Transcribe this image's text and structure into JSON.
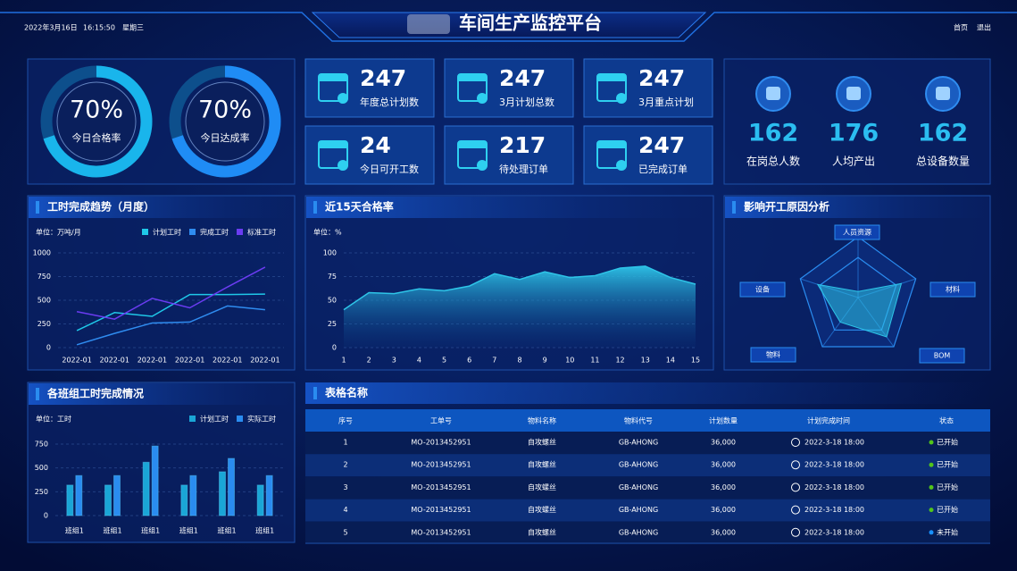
{
  "header": {
    "date": "2022年3月16日",
    "time": "16:15:50",
    "weekday": "星期三",
    "title": "车间生产监控平台",
    "nav": [
      "首页",
      "退出"
    ]
  },
  "gauges": [
    {
      "value": 70,
      "value_label": "70%",
      "label": "今日合格率",
      "color": "#19b5ec"
    },
    {
      "value": 70,
      "value_label": "70%",
      "label": "今日达成率",
      "color": "#1f8cf5"
    }
  ],
  "stats": [
    {
      "value": 247,
      "label": "年度总计划数"
    },
    {
      "value": 247,
      "label": "3月计划总数"
    },
    {
      "value": 247,
      "label": "3月重点计划"
    },
    {
      "value": 24,
      "label": "今日可开工数"
    },
    {
      "value": 217,
      "label": "待处理订单"
    },
    {
      "value": 247,
      "label": "已完成订单"
    }
  ],
  "staff": [
    {
      "value": 162,
      "label": "在岗总人数"
    },
    {
      "value": 176,
      "label": "人均产出"
    },
    {
      "value": 162,
      "label": "总设备数量"
    }
  ],
  "chart_data": [
    {
      "type": "line",
      "title": "工时完成趋势（月度）",
      "unit": "单位：万吨/月",
      "categories": [
        "2022-01",
        "2022-01",
        "2022-01",
        "2022-01",
        "2022-01",
        "2022-01"
      ],
      "series": [
        {
          "name": "计划工时",
          "color": "#1fc8e8",
          "values": [
            180,
            370,
            330,
            560,
            560,
            565
          ]
        },
        {
          "name": "完成工时",
          "color": "#2f8cf0",
          "values": [
            30,
            150,
            260,
            270,
            440,
            400
          ]
        },
        {
          "name": "标准工时",
          "color": "#6b3cf2",
          "values": [
            380,
            300,
            520,
            420,
            640,
            850
          ]
        }
      ],
      "ylim": [
        0,
        1000
      ],
      "yticks": [
        0,
        250,
        500,
        750,
        1000
      ],
      "grid": true
    },
    {
      "type": "area",
      "title": "近15天合格率",
      "unit": "单位：%",
      "x": [
        1,
        2,
        3,
        4,
        5,
        6,
        7,
        8,
        9,
        10,
        11,
        12,
        13,
        14,
        15
      ],
      "values": [
        40,
        58,
        57,
        62,
        60,
        65,
        78,
        72,
        80,
        74,
        76,
        84,
        86,
        74,
        67
      ],
      "color": "#2ec5e8",
      "xlim": [
        1,
        15
      ],
      "xticks": [
        1,
        2,
        3,
        4,
        5,
        6,
        7,
        8,
        9,
        10,
        11,
        12,
        13,
        14,
        15
      ],
      "ylim": [
        0,
        100
      ],
      "yticks": [
        0,
        25,
        50,
        75,
        100
      ],
      "grid": true
    },
    {
      "type": "radar",
      "title": "影响开工原因分析",
      "categories": [
        "人员资源",
        "材料",
        "BOM",
        "物料",
        "设备"
      ],
      "values": [
        10,
        75,
        80,
        50,
        70
      ],
      "rlim": [
        0,
        100
      ],
      "color": "#2ec5e8"
    },
    {
      "type": "bar",
      "title": "各班组工时完成情况",
      "unit": "单位：工时",
      "categories": [
        "班组1",
        "班组1",
        "班组1",
        "班组1",
        "班组1",
        "班组1"
      ],
      "series": [
        {
          "name": "计划工时",
          "color": "#1aa6d6",
          "values": [
            320,
            320,
            560,
            320,
            460,
            320
          ]
        },
        {
          "name": "实际工时",
          "color": "#2a8cf0",
          "values": [
            420,
            420,
            730,
            420,
            600,
            420
          ]
        }
      ],
      "ylim": [
        0,
        900
      ],
      "yticks": [
        0,
        250,
        500,
        750
      ],
      "grid": true
    }
  ],
  "table": {
    "title": "表格名称",
    "columns": [
      "序号",
      "工单号",
      "物料名称",
      "物料代号",
      "计划数量",
      "计划完成时间",
      "状态"
    ],
    "rows": [
      [
        "1",
        "MO-2013452951",
        "自攻螺丝",
        "GB-AHONG",
        "36,000",
        "2022-3-18  18:00",
        "已开始"
      ],
      [
        "2",
        "MO-2013452951",
        "自攻螺丝",
        "GB-AHONG",
        "36,000",
        "2022-3-18  18:00",
        "已开始"
      ],
      [
        "3",
        "MO-2013452951",
        "自攻螺丝",
        "GB-AHONG",
        "36,000",
        "2022-3-18  18:00",
        "已开始"
      ],
      [
        "4",
        "MO-2013452951",
        "自攻螺丝",
        "GB-AHONG",
        "36,000",
        "2022-3-18  18:00",
        "已开始"
      ],
      [
        "5",
        "MO-2013452951",
        "自攻螺丝",
        "GB-AHONG",
        "36,000",
        "2022-3-18  18:00",
        "未开始"
      ]
    ],
    "status_colors": [
      "#52c41a",
      "#52c41a",
      "#52c41a",
      "#52c41a",
      "#1890ff"
    ]
  }
}
